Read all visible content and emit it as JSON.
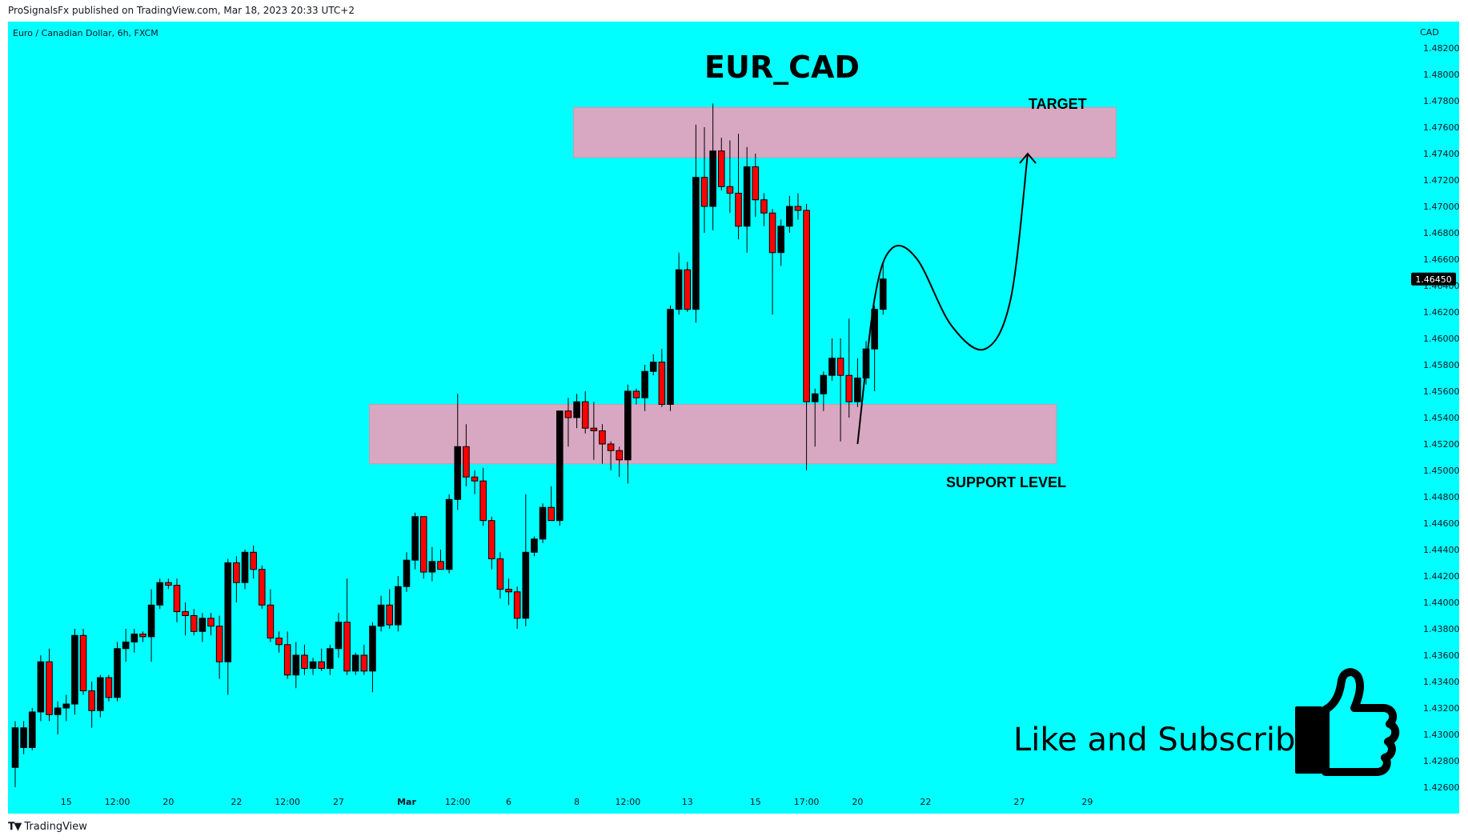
{
  "header": {
    "published_line": "ProSignalsFx published on TradingView.com, Mar 18, 2023 20:33 UTC+2"
  },
  "footer": {
    "brand": "TradingView"
  },
  "colors": {
    "background": "#00ffff",
    "zone": "#d8a7c1",
    "bull": "#000000",
    "bear": "#ff0000",
    "price_badge": "#000000"
  },
  "chart_data": {
    "type": "candlestick",
    "symbol_line": "Euro / Canadian Dollar, 6h, FXCM",
    "title": "EUR_CAD",
    "currency": "CAD",
    "ylim": [
      1.424,
      1.484
    ],
    "y_ticks": [
      "1.48200",
      "1.48000",
      "1.47800",
      "1.47600",
      "1.47400",
      "1.47200",
      "1.47000",
      "1.46800",
      "1.46600",
      "1.46400",
      "1.46200",
      "1.46000",
      "1.45800",
      "1.45600",
      "1.45400",
      "1.45200",
      "1.45000",
      "1.44800",
      "1.44600",
      "1.44400",
      "1.44200",
      "1.44000",
      "1.43800",
      "1.43600",
      "1.43400",
      "1.43200",
      "1.43000",
      "1.42800",
      "1.42600"
    ],
    "x_ticks": [
      {
        "label": "15",
        "i": 6
      },
      {
        "label": "12:00",
        "i": 12
      },
      {
        "label": "20",
        "i": 18
      },
      {
        "label": "22",
        "i": 26
      },
      {
        "label": "12:00",
        "i": 32
      },
      {
        "label": "27",
        "i": 38
      },
      {
        "label": "Mar",
        "i": 46
      },
      {
        "label": "12:00",
        "i": 52
      },
      {
        "label": "6",
        "i": 58
      },
      {
        "label": "8",
        "i": 66
      },
      {
        "label": "12:00",
        "i": 72
      },
      {
        "label": "13",
        "i": 79
      },
      {
        "label": "15",
        "i": 87
      },
      {
        "label": "17:00",
        "i": 93
      },
      {
        "label": "20",
        "i": 99
      },
      {
        "label": "22",
        "i": 107
      },
      {
        "label": "27",
        "i": 118
      },
      {
        "label": "29",
        "i": 126
      }
    ],
    "current_price": "1.46450",
    "zones": [
      {
        "label": "TARGET",
        "from_i": 66,
        "to_i": 129,
        "y_top": 1.4775,
        "y_bottom": 1.4737
      },
      {
        "label": "SUPPORT LEVEL",
        "from_i": 42,
        "to_i": 122,
        "y_top": 1.455,
        "y_bottom": 1.4505
      }
    ],
    "projection": [
      [
        99,
        1.452
      ],
      [
        101,
        1.463
      ],
      [
        103,
        1.4668
      ],
      [
        106,
        1.466
      ],
      [
        110,
        1.461
      ],
      [
        114,
        1.4592
      ],
      [
        117,
        1.463
      ],
      [
        119,
        1.474
      ]
    ],
    "candles": [
      {
        "o": 1.4275,
        "h": 1.431,
        "l": 1.426,
        "c": 1.4305
      },
      {
        "o": 1.429,
        "h": 1.431,
        "l": 1.4285,
        "c": 1.4305
      },
      {
        "o": 1.429,
        "h": 1.432,
        "l": 1.4288,
        "c": 1.4317
      },
      {
        "o": 1.4317,
        "h": 1.436,
        "l": 1.431,
        "c": 1.4355
      },
      {
        "o": 1.4355,
        "h": 1.4365,
        "l": 1.431,
        "c": 1.4315
      },
      {
        "o": 1.4315,
        "h": 1.4325,
        "l": 1.43,
        "c": 1.432
      },
      {
        "o": 1.432,
        "h": 1.433,
        "l": 1.431,
        "c": 1.4323
      },
      {
        "o": 1.4323,
        "h": 1.438,
        "l": 1.4315,
        "c": 1.4375
      },
      {
        "o": 1.4375,
        "h": 1.438,
        "l": 1.433,
        "c": 1.4333
      },
      {
        "o": 1.4333,
        "h": 1.434,
        "l": 1.4305,
        "c": 1.4318
      },
      {
        "o": 1.4318,
        "h": 1.4345,
        "l": 1.4313,
        "c": 1.4343
      },
      {
        "o": 1.4343,
        "h": 1.4345,
        "l": 1.4325,
        "c": 1.4328
      },
      {
        "o": 1.4328,
        "h": 1.437,
        "l": 1.4325,
        "c": 1.4365
      },
      {
        "o": 1.4365,
        "h": 1.438,
        "l": 1.4355,
        "c": 1.437
      },
      {
        "o": 1.437,
        "h": 1.438,
        "l": 1.4362,
        "c": 1.4376
      },
      {
        "o": 1.4376,
        "h": 1.4378,
        "l": 1.437,
        "c": 1.4374
      },
      {
        "o": 1.4374,
        "h": 1.441,
        "l": 1.4355,
        "c": 1.4398
      },
      {
        "o": 1.4398,
        "h": 1.4418,
        "l": 1.4395,
        "c": 1.4415
      },
      {
        "o": 1.4415,
        "h": 1.4418,
        "l": 1.441,
        "c": 1.4413
      },
      {
        "o": 1.4413,
        "h": 1.4418,
        "l": 1.4385,
        "c": 1.4393
      },
      {
        "o": 1.4393,
        "h": 1.44,
        "l": 1.4375,
        "c": 1.439
      },
      {
        "o": 1.439,
        "h": 1.4395,
        "l": 1.4375,
        "c": 1.4378
      },
      {
        "o": 1.4378,
        "h": 1.4392,
        "l": 1.437,
        "c": 1.4388
      },
      {
        "o": 1.4388,
        "h": 1.4392,
        "l": 1.4375,
        "c": 1.4382
      },
      {
        "o": 1.4382,
        "h": 1.439,
        "l": 1.4342,
        "c": 1.4355
      },
      {
        "o": 1.4355,
        "h": 1.4433,
        "l": 1.433,
        "c": 1.443
      },
      {
        "o": 1.443,
        "h": 1.4435,
        "l": 1.44,
        "c": 1.4415
      },
      {
        "o": 1.4415,
        "h": 1.444,
        "l": 1.441,
        "c": 1.4438
      },
      {
        "o": 1.4438,
        "h": 1.4443,
        "l": 1.4418,
        "c": 1.4425
      },
      {
        "o": 1.4425,
        "h": 1.4428,
        "l": 1.4395,
        "c": 1.4398
      },
      {
        "o": 1.4398,
        "h": 1.441,
        "l": 1.437,
        "c": 1.4373
      },
      {
        "o": 1.4373,
        "h": 1.4378,
        "l": 1.4362,
        "c": 1.4368
      },
      {
        "o": 1.4368,
        "h": 1.4378,
        "l": 1.4342,
        "c": 1.4345
      },
      {
        "o": 1.4345,
        "h": 1.437,
        "l": 1.4335,
        "c": 1.436
      },
      {
        "o": 1.436,
        "h": 1.4368,
        "l": 1.4345,
        "c": 1.435
      },
      {
        "o": 1.435,
        "h": 1.4358,
        "l": 1.4345,
        "c": 1.4355
      },
      {
        "o": 1.4355,
        "h": 1.4365,
        "l": 1.4348,
        "c": 1.435
      },
      {
        "o": 1.435,
        "h": 1.4368,
        "l": 1.4345,
        "c": 1.4365
      },
      {
        "o": 1.4365,
        "h": 1.4392,
        "l": 1.4358,
        "c": 1.4385
      },
      {
        "o": 1.4385,
        "h": 1.4418,
        "l": 1.4345,
        "c": 1.4348
      },
      {
        "o": 1.4348,
        "h": 1.4362,
        "l": 1.4345,
        "c": 1.436
      },
      {
        "o": 1.436,
        "h": 1.4368,
        "l": 1.4345,
        "c": 1.4348
      },
      {
        "o": 1.4348,
        "h": 1.4385,
        "l": 1.4332,
        "c": 1.4382
      },
      {
        "o": 1.4382,
        "h": 1.4405,
        "l": 1.4378,
        "c": 1.4398
      },
      {
        "o": 1.4398,
        "h": 1.441,
        "l": 1.438,
        "c": 1.4383
      },
      {
        "o": 1.4383,
        "h": 1.442,
        "l": 1.4378,
        "c": 1.4412
      },
      {
        "o": 1.4412,
        "h": 1.4438,
        "l": 1.4408,
        "c": 1.4432
      },
      {
        "o": 1.4432,
        "h": 1.4468,
        "l": 1.4425,
        "c": 1.4465
      },
      {
        "o": 1.4465,
        "h": 1.446,
        "l": 1.4418,
        "c": 1.4423
      },
      {
        "o": 1.4423,
        "h": 1.4442,
        "l": 1.4416,
        "c": 1.4431
      },
      {
        "o": 1.4431,
        "h": 1.444,
        "l": 1.4425,
        "c": 1.4425
      },
      {
        "o": 1.4425,
        "h": 1.4482,
        "l": 1.4422,
        "c": 1.4478
      },
      {
        "o": 1.4478,
        "h": 1.4558,
        "l": 1.447,
        "c": 1.4518
      },
      {
        "o": 1.4518,
        "h": 1.4535,
        "l": 1.4488,
        "c": 1.4495
      },
      {
        "o": 1.4495,
        "h": 1.45,
        "l": 1.4482,
        "c": 1.4492
      },
      {
        "o": 1.4492,
        "h": 1.4502,
        "l": 1.4458,
        "c": 1.4462
      },
      {
        "o": 1.4462,
        "h": 1.4465,
        "l": 1.4425,
        "c": 1.4433
      },
      {
        "o": 1.4433,
        "h": 1.4438,
        "l": 1.4403,
        "c": 1.441
      },
      {
        "o": 1.441,
        "h": 1.4418,
        "l": 1.4398,
        "c": 1.4408
      },
      {
        "o": 1.4408,
        "h": 1.4412,
        "l": 1.438,
        "c": 1.4388
      },
      {
        "o": 1.4388,
        "h": 1.4482,
        "l": 1.4382,
        "c": 1.4438
      },
      {
        "o": 1.4438,
        "h": 1.445,
        "l": 1.4435,
        "c": 1.4448
      },
      {
        "o": 1.4448,
        "h": 1.4475,
        "l": 1.4445,
        "c": 1.4472
      },
      {
        "o": 1.4472,
        "h": 1.4488,
        "l": 1.4462,
        "c": 1.4462
      },
      {
        "o": 1.4462,
        "h": 1.4545,
        "l": 1.4458,
        "c": 1.4545
      },
      {
        "o": 1.4545,
        "h": 1.4555,
        "l": 1.4518,
        "c": 1.454
      },
      {
        "o": 1.454,
        "h": 1.4558,
        "l": 1.4532,
        "c": 1.4552
      },
      {
        "o": 1.4552,
        "h": 1.456,
        "l": 1.4528,
        "c": 1.4532
      },
      {
        "o": 1.4532,
        "h": 1.4552,
        "l": 1.4508,
        "c": 1.453
      },
      {
        "o": 1.453,
        "h": 1.4535,
        "l": 1.4505,
        "c": 1.452
      },
      {
        "o": 1.452,
        "h": 1.4522,
        "l": 1.45,
        "c": 1.4515
      },
      {
        "o": 1.4515,
        "h": 1.4518,
        "l": 1.4495,
        "c": 1.4508
      },
      {
        "o": 1.4508,
        "h": 1.4565,
        "l": 1.449,
        "c": 1.456
      },
      {
        "o": 1.456,
        "h": 1.4562,
        "l": 1.455,
        "c": 1.4555
      },
      {
        "o": 1.4555,
        "h": 1.458,
        "l": 1.4545,
        "c": 1.4575
      },
      {
        "o": 1.4575,
        "h": 1.4588,
        "l": 1.4572,
        "c": 1.4582
      },
      {
        "o": 1.4582,
        "h": 1.4592,
        "l": 1.4548,
        "c": 1.455
      },
      {
        "o": 1.455,
        "h": 1.4625,
        "l": 1.4545,
        "c": 1.4622
      },
      {
        "o": 1.4622,
        "h": 1.4665,
        "l": 1.4618,
        "c": 1.4652
      },
      {
        "o": 1.4652,
        "h": 1.4658,
        "l": 1.462,
        "c": 1.4622
      },
      {
        "o": 1.4622,
        "h": 1.4762,
        "l": 1.4612,
        "c": 1.4722
      },
      {
        "o": 1.4722,
        "h": 1.476,
        "l": 1.468,
        "c": 1.47
      },
      {
        "o": 1.47,
        "h": 1.4778,
        "l": 1.4682,
        "c": 1.4742
      },
      {
        "o": 1.4742,
        "h": 1.4752,
        "l": 1.4712,
        "c": 1.4715
      },
      {
        "o": 1.4715,
        "h": 1.475,
        "l": 1.4695,
        "c": 1.471
      },
      {
        "o": 1.471,
        "h": 1.4755,
        "l": 1.4675,
        "c": 1.4685
      },
      {
        "o": 1.4685,
        "h": 1.4745,
        "l": 1.4665,
        "c": 1.473
      },
      {
        "o": 1.473,
        "h": 1.474,
        "l": 1.4692,
        "c": 1.4705
      },
      {
        "o": 1.4705,
        "h": 1.471,
        "l": 1.4685,
        "c": 1.4695
      },
      {
        "o": 1.4695,
        "h": 1.4698,
        "l": 1.4618,
        "c": 1.4665
      },
      {
        "o": 1.4665,
        "h": 1.469,
        "l": 1.4655,
        "c": 1.4685
      },
      {
        "o": 1.4685,
        "h": 1.4708,
        "l": 1.468,
        "c": 1.47
      },
      {
        "o": 1.47,
        "h": 1.471,
        "l": 1.469,
        "c": 1.4697
      },
      {
        "o": 1.4697,
        "h": 1.4702,
        "l": 1.45,
        "c": 1.4552
      },
      {
        "o": 1.4552,
        "h": 1.4562,
        "l": 1.4518,
        "c": 1.4558
      },
      {
        "o": 1.4558,
        "h": 1.4575,
        "l": 1.4545,
        "c": 1.4572
      },
      {
        "o": 1.4572,
        "h": 1.46,
        "l": 1.4568,
        "c": 1.4585
      },
      {
        "o": 1.4585,
        "h": 1.46,
        "l": 1.4522,
        "c": 1.4572
      },
      {
        "o": 1.4572,
        "h": 1.4615,
        "l": 1.454,
        "c": 1.4552
      },
      {
        "o": 1.4552,
        "h": 1.4585,
        "l": 1.4548,
        "c": 1.457
      },
      {
        "o": 1.457,
        "h": 1.4598,
        "l": 1.4565,
        "c": 1.4592
      },
      {
        "o": 1.4592,
        "h": 1.4625,
        "l": 1.456,
        "c": 1.4622
      },
      {
        "o": 1.4622,
        "h": 1.4658,
        "l": 1.4618,
        "c": 1.4645
      }
    ]
  },
  "call_to_action": {
    "text": "Like and Subscribe",
    "icon": "thumbs-up-icon"
  }
}
